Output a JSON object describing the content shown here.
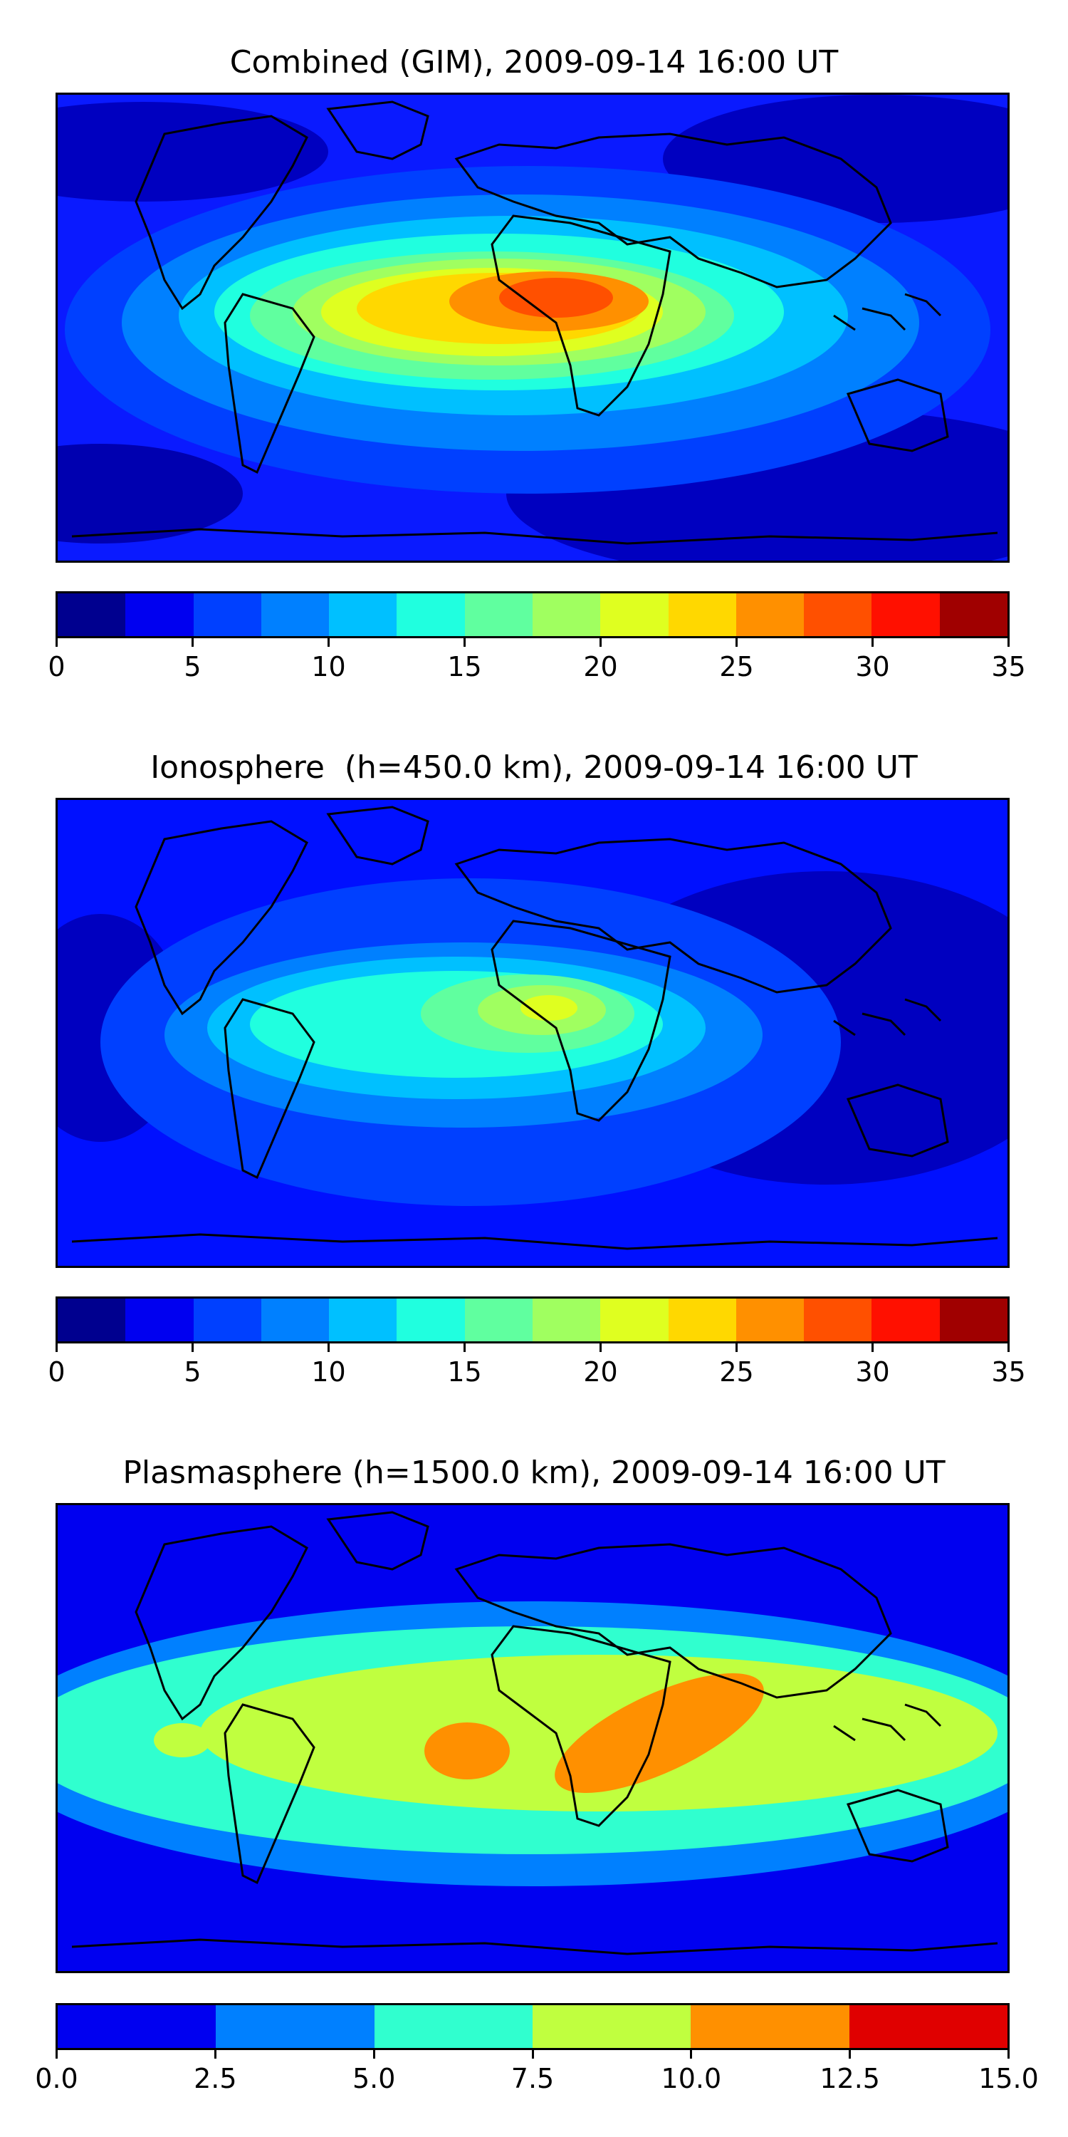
{
  "chart_data": [
    {
      "type": "heatmap",
      "title": "Combined (GIM), 2009-09-14 16:00 UT",
      "colorbar": {
        "levels": [
          0,
          2.5,
          5,
          7.5,
          10,
          12.5,
          15,
          17.5,
          20,
          22.5,
          25,
          27.5,
          30,
          32.5,
          35
        ],
        "colors": [
          "#00008f",
          "#0000f0",
          "#0040ff",
          "#0080ff",
          "#00c0ff",
          "#20ffdf",
          "#60ff9f",
          "#a0ff60",
          "#dfff20",
          "#ffd800",
          "#ff9000",
          "#ff5000",
          "#ff1000",
          "#a00000"
        ],
        "tick_values": [
          0,
          5,
          10,
          15,
          20,
          25,
          30,
          35
        ],
        "tick_labels": [
          "0",
          "5",
          "10",
          "15",
          "20",
          "25",
          "30",
          "35"
        ]
      },
      "features": [
        {
          "description": "equatorial anomaly maximum over West Africa",
          "peak_level": "27.5-30"
        },
        {
          "description": "secondary maximum over South America",
          "peak_level": "22.5-25"
        }
      ]
    },
    {
      "type": "heatmap",
      "title": "Ionosphere  (h=450.0 km), 2009-09-14 16:00 UT",
      "colorbar": {
        "levels": [
          0,
          2.5,
          5,
          7.5,
          10,
          12.5,
          15,
          17.5,
          20,
          22.5,
          25,
          27.5,
          30,
          32.5,
          35
        ],
        "colors": [
          "#00008f",
          "#0000f0",
          "#0040ff",
          "#0080ff",
          "#00c0ff",
          "#20ffdf",
          "#60ff9f",
          "#a0ff60",
          "#dfff20",
          "#ffd800",
          "#ff9000",
          "#ff5000",
          "#ff1000",
          "#a00000"
        ],
        "tick_values": [
          0,
          5,
          10,
          15,
          20,
          25,
          30,
          35
        ],
        "tick_labels": [
          "0",
          "5",
          "10",
          "15",
          "20",
          "25",
          "30",
          "35"
        ]
      },
      "features": [
        {
          "description": "maximum over West Africa",
          "peak_level": "20-22.5"
        },
        {
          "description": "secondary maximum over South America",
          "peak_level": "12.5-15"
        }
      ]
    },
    {
      "type": "heatmap",
      "title": "Plasmasphere (h=1500.0 km), 2009-09-14 16:00 UT",
      "colorbar": {
        "levels": [
          0,
          2.5,
          5,
          7.5,
          10,
          12.5,
          15
        ],
        "colors": [
          "#0000f0",
          "#0080ff",
          "#30ffcf",
          "#c0ff3f",
          "#ff9000",
          "#e00000"
        ],
        "tick_values": [
          0,
          2.5,
          5,
          7.5,
          10,
          12.5,
          15
        ],
        "tick_labels": [
          "0.0",
          "2.5",
          "5.0",
          "7.5",
          "10.0",
          "12.5",
          "15.0"
        ]
      },
      "features": [
        {
          "description": "maximum band over East Africa / Arabia",
          "peak_level": "10-12.5"
        },
        {
          "description": "maximum over South America",
          "peak_level": "10-12.5"
        }
      ]
    }
  ]
}
